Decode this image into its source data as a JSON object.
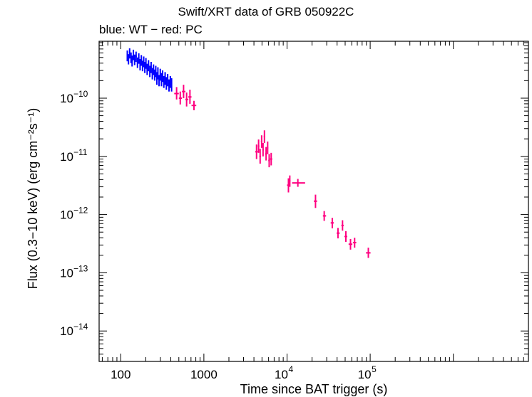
{
  "chart_data": {
    "type": "scatter",
    "title": "Swift/XRT data of GRB 050922C",
    "subtitle": "blue: WT − red: PC",
    "xlabel": "Time since BAT trigger (s)",
    "ylabel": "Flux (0.3−10 keV) (erg cm⁻²s⁻¹)",
    "x_scale": "log",
    "y_scale": "log",
    "xlim": [
      55,
      8000000
    ],
    "ylim": [
      3e-15,
      9.5e-10
    ],
    "x_ticks": [
      {
        "value": 100,
        "label": "100"
      },
      {
        "value": 1000,
        "label": "1000"
      },
      {
        "value": 10000,
        "base": "10",
        "exp": "4"
      },
      {
        "value": 100000,
        "base": "10",
        "exp": "5"
      }
    ],
    "y_ticks": [
      {
        "value": 1e-10,
        "base": "10",
        "exp": "−10"
      },
      {
        "value": 1e-11,
        "base": "10",
        "exp": "−11"
      },
      {
        "value": 1e-12,
        "base": "10",
        "exp": "−12"
      },
      {
        "value": 1e-13,
        "base": "10",
        "exp": "−13"
      },
      {
        "value": 1e-14,
        "base": "10",
        "exp": "−14"
      }
    ],
    "grid": false,
    "series": [
      {
        "name": "WT",
        "color": "#0000ff",
        "points": [
          [
            120,
            5.4e-10,
            118,
            122,
            4.3e-10,
            6.6e-10
          ],
          [
            124,
            4.7e-10,
            122,
            126,
            3.8e-10,
            5.7e-10
          ],
          [
            128,
            6e-10,
            126,
            130,
            4.8e-10,
            7.2e-10
          ],
          [
            133,
            5e-10,
            130,
            135,
            4e-10,
            6.1e-10
          ],
          [
            137,
            4.4e-10,
            135,
            140,
            3.5e-10,
            5.4e-10
          ],
          [
            142,
            5.6e-10,
            140,
            145,
            4.5e-10,
            6.8e-10
          ],
          [
            147,
            4.6e-10,
            145,
            150,
            3.7e-10,
            5.6e-10
          ],
          [
            153,
            5.2e-10,
            150,
            156,
            4.2e-10,
            6.3e-10
          ],
          [
            159,
            4.1e-10,
            156,
            162,
            3.3e-10,
            5e-10
          ],
          [
            165,
            4.9e-10,
            162,
            168,
            3.9e-10,
            5.9e-10
          ],
          [
            171,
            3.8e-10,
            168,
            174,
            3e-10,
            4.7e-10
          ],
          [
            177,
            4.5e-10,
            174,
            180,
            3.6e-10,
            5.5e-10
          ],
          [
            183,
            3.6e-10,
            180,
            186,
            2.9e-10,
            4.4e-10
          ],
          [
            189,
            4.3e-10,
            186,
            192,
            3.4e-10,
            5.2e-10
          ],
          [
            195,
            3.4e-10,
            192,
            198,
            2.7e-10,
            4.2e-10
          ],
          [
            201,
            4e-10,
            198,
            204,
            3.2e-10,
            4.9e-10
          ],
          [
            208,
            3.2e-10,
            204,
            212,
            2.5e-10,
            3.9e-10
          ],
          [
            216,
            3.7e-10,
            212,
            220,
            2.9e-10,
            4.5e-10
          ],
          [
            224,
            2.9e-10,
            220,
            228,
            2.3e-10,
            3.6e-10
          ],
          [
            232,
            3.4e-10,
            228,
            236,
            2.7e-10,
            4.2e-10
          ],
          [
            240,
            2.7e-10,
            236,
            244,
            2.1e-10,
            3.3e-10
          ],
          [
            248,
            3.1e-10,
            244,
            252,
            2.5e-10,
            3.8e-10
          ],
          [
            256,
            2.5e-10,
            252,
            260,
            2e-10,
            3.1e-10
          ],
          [
            264,
            2.9e-10,
            260,
            268,
            2.3e-10,
            3.6e-10
          ],
          [
            272,
            2.2e-10,
            268,
            276,
            1.7e-10,
            2.8e-10
          ],
          [
            280,
            2.7e-10,
            276,
            284,
            2.1e-10,
            3.4e-10
          ],
          [
            289,
            2e-10,
            284,
            294,
            1.6e-10,
            2.5e-10
          ],
          [
            299,
            2.5e-10,
            294,
            304,
            2e-10,
            3.2e-10
          ],
          [
            309,
            2.1e-10,
            304,
            314,
            1.6e-10,
            2.7e-10
          ],
          [
            319,
            2.4e-10,
            314,
            324,
            1.9e-10,
            3e-10
          ],
          [
            330,
            1.9e-10,
            324,
            336,
            1.5e-10,
            2.4e-10
          ],
          [
            342,
            2.2e-10,
            336,
            348,
            1.7e-10,
            2.8e-10
          ],
          [
            354,
            1.8e-10,
            348,
            360,
            1.4e-10,
            2.3e-10
          ],
          [
            367,
            2e-10,
            360,
            374,
            1.6e-10,
            2.6e-10
          ],
          [
            381,
            1.6e-10,
            374,
            388,
            1.3e-10,
            2.1e-10
          ],
          [
            395,
            1.9e-10,
            388,
            402,
            1.5e-10,
            2.4e-10
          ],
          [
            409,
            1.7e-10,
            402,
            416,
            1.3e-10,
            2.2e-10
          ]
        ]
      },
      {
        "name": "PC",
        "color": "#ff0080",
        "points": [
          [
            470,
            1.2e-10,
            440,
            500,
            9.5e-11,
            1.55e-10
          ],
          [
            520,
            1e-10,
            500,
            545,
            7.8e-11,
            1.3e-10
          ],
          [
            570,
            1.3e-10,
            545,
            600,
            1e-10,
            1.7e-10
          ],
          [
            620,
            9.5e-11,
            600,
            650,
            7.2e-11,
            1.25e-10
          ],
          [
            680,
            1.05e-10,
            650,
            710,
            8e-11,
            1.4e-10
          ],
          [
            760,
            7.5e-11,
            710,
            810,
            6.2e-11,
            9e-11
          ],
          [
            4300,
            1.2e-11,
            4150,
            4450,
            9e-12,
            1.6e-11
          ],
          [
            4550,
            1.5e-11,
            4450,
            4650,
            1.15e-11,
            1.95e-11
          ],
          [
            4750,
            1e-11,
            4650,
            4850,
            7.5e-12,
            1.35e-11
          ],
          [
            4950,
            1.8e-11,
            4850,
            5050,
            1.4e-11,
            2.3e-11
          ],
          [
            5150,
            1.3e-11,
            5050,
            5250,
            1e-11,
            1.7e-11
          ],
          [
            5350,
            2.2e-11,
            5250,
            5450,
            1.7e-11,
            2.8e-11
          ],
          [
            5600,
            1.1e-11,
            5450,
            5750,
            8.5e-12,
            1.45e-11
          ],
          [
            5850,
            1.4e-11,
            5750,
            5950,
            1.1e-11,
            1.8e-11
          ],
          [
            6100,
            8.5e-12,
            5950,
            6250,
            6.5e-12,
            1.1e-11
          ],
          [
            6450,
            9e-12,
            6250,
            6650,
            7e-12,
            1.15e-11
          ],
          [
            10400,
            3.2e-12,
            10000,
            10800,
            2.4e-12,
            4.2e-12
          ],
          [
            10800,
            3.8e-12,
            10600,
            11000,
            3e-12,
            4.7e-12
          ],
          [
            13500,
            3.5e-12,
            11500,
            16500,
            3e-12,
            4.1e-12
          ],
          [
            22000,
            1.7e-12,
            21000,
            23000,
            1.3e-12,
            2.2e-12
          ],
          [
            28000,
            9.5e-13,
            27000,
            29500,
            7.8e-13,
            1.15e-12
          ],
          [
            35000,
            7.2e-13,
            33500,
            36500,
            5.8e-13,
            8.8e-13
          ],
          [
            41000,
            4.8e-13,
            39500,
            43000,
            3.9e-13,
            5.9e-13
          ],
          [
            46500,
            6.5e-13,
            45000,
            48000,
            5.3e-13,
            8e-13
          ],
          [
            51000,
            4.2e-13,
            49000,
            53000,
            3.4e-13,
            5.2e-13
          ],
          [
            58000,
            3.1e-13,
            55000,
            61000,
            2.5e-13,
            3.8e-13
          ],
          [
            65000,
            3.3e-13,
            62000,
            68000,
            2.7e-13,
            4e-13
          ],
          [
            95000,
            2.2e-13,
            89000,
            101000,
            1.8e-13,
            2.7e-13
          ]
        ]
      }
    ]
  }
}
